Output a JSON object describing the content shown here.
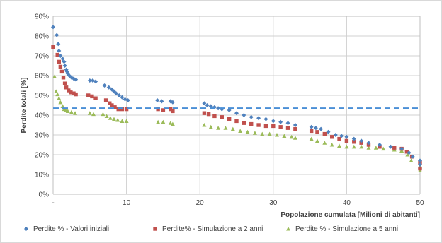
{
  "chart_data": {
    "type": "scatter",
    "title": "",
    "xlabel": "Popolazione cumulata [Milioni di abitanti]",
    "ylabel": "Perdite totali [%]",
    "xlim": [
      0,
      50
    ],
    "ylim": [
      0,
      90
    ],
    "x_ticks": [
      "-",
      "10",
      "20",
      "30",
      "40",
      "50"
    ],
    "y_ticks": [
      "0%",
      "10%",
      "20%",
      "30%",
      "40%",
      "50%",
      "60%",
      "70%",
      "80%",
      "90%"
    ],
    "grid": true,
    "legend_position": "bottom",
    "reference_line": {
      "y": 43.5,
      "color": "#4a8fd6",
      "style": "dashed"
    },
    "series": [
      {
        "name": "Perdite % - Valori iniziali",
        "color": "#4f81bd",
        "marker": "diamond",
        "points": [
          [
            0.0,
            84.5
          ],
          [
            0.5,
            80.5
          ],
          [
            0.7,
            76
          ],
          [
            0.8,
            72.5
          ],
          [
            1.0,
            70
          ],
          [
            1.3,
            68.5
          ],
          [
            1.5,
            67
          ],
          [
            1.6,
            65
          ],
          [
            1.8,
            63
          ],
          [
            1.9,
            62
          ],
          [
            2.0,
            61
          ],
          [
            2.2,
            60
          ],
          [
            2.5,
            59
          ],
          [
            2.8,
            58.5
          ],
          [
            3.1,
            58
          ],
          [
            5.0,
            57.5
          ],
          [
            5.4,
            57.5
          ],
          [
            5.8,
            57
          ],
          [
            7.0,
            55
          ],
          [
            7.6,
            54
          ],
          [
            8.0,
            53
          ],
          [
            8.3,
            52
          ],
          [
            8.6,
            51
          ],
          [
            9.0,
            50
          ],
          [
            9.4,
            49
          ],
          [
            9.8,
            48
          ],
          [
            10.2,
            47.5
          ],
          [
            14.2,
            47.5
          ],
          [
            14.8,
            47
          ],
          [
            16.0,
            47
          ],
          [
            16.3,
            46.5
          ],
          [
            20.6,
            46
          ],
          [
            21.0,
            45
          ],
          [
            21.5,
            44.5
          ],
          [
            22.0,
            44
          ],
          [
            22.5,
            43.5
          ],
          [
            23.0,
            43
          ],
          [
            24.0,
            42.5
          ],
          [
            25.0,
            41
          ],
          [
            26.0,
            40
          ],
          [
            27.0,
            39
          ],
          [
            28.0,
            38.5
          ],
          [
            29.0,
            38
          ],
          [
            30.0,
            37
          ],
          [
            31.0,
            36.5
          ],
          [
            32.0,
            36
          ],
          [
            33.0,
            35
          ],
          [
            35.2,
            34
          ],
          [
            35.8,
            33.5
          ],
          [
            36.5,
            33
          ],
          [
            37.5,
            31.5
          ],
          [
            38.5,
            30
          ],
          [
            39.3,
            29.5
          ],
          [
            40.0,
            29
          ],
          [
            41.0,
            28
          ],
          [
            42.0,
            27
          ],
          [
            43.0,
            26
          ],
          [
            44.5,
            25
          ],
          [
            46.0,
            24
          ],
          [
            47.5,
            23
          ],
          [
            48.5,
            21
          ],
          [
            49.0,
            19
          ],
          [
            50.0,
            17
          ],
          [
            50.0,
            15
          ]
        ]
      },
      {
        "name": "Perdite% - Simulazione a 2 anni",
        "color": "#c0504d",
        "marker": "square",
        "points": [
          [
            0.0,
            74.5
          ],
          [
            0.6,
            70.5
          ],
          [
            0.8,
            67
          ],
          [
            1.0,
            64.5
          ],
          [
            1.2,
            62
          ],
          [
            1.4,
            59
          ],
          [
            1.6,
            56
          ],
          [
            1.8,
            54
          ],
          [
            2.1,
            52.5
          ],
          [
            2.4,
            51.5
          ],
          [
            2.8,
            51
          ],
          [
            3.1,
            50.5
          ],
          [
            4.8,
            50
          ],
          [
            5.3,
            49.5
          ],
          [
            5.8,
            48.5
          ],
          [
            7.2,
            47.5
          ],
          [
            7.7,
            46
          ],
          [
            8.0,
            45
          ],
          [
            8.4,
            44
          ],
          [
            8.9,
            43
          ],
          [
            9.4,
            43
          ],
          [
            10.0,
            43
          ],
          [
            14.3,
            43
          ],
          [
            15.0,
            42.5
          ],
          [
            16.0,
            43
          ],
          [
            16.3,
            42
          ],
          [
            20.6,
            41
          ],
          [
            21.2,
            40.5
          ],
          [
            22.0,
            39.5
          ],
          [
            23.0,
            39
          ],
          [
            24.0,
            38
          ],
          [
            25.0,
            37
          ],
          [
            26.0,
            36
          ],
          [
            27.0,
            35.5
          ],
          [
            28.0,
            35
          ],
          [
            29.0,
            34.5
          ],
          [
            30.0,
            34.5
          ],
          [
            31.0,
            34
          ],
          [
            32.0,
            33.5
          ],
          [
            33.0,
            33
          ],
          [
            35.2,
            32
          ],
          [
            36.0,
            31.5
          ],
          [
            37.0,
            30.5
          ],
          [
            38.0,
            29
          ],
          [
            39.0,
            28
          ],
          [
            40.0,
            27
          ],
          [
            41.0,
            26.5
          ],
          [
            42.0,
            26
          ],
          [
            43.0,
            25
          ],
          [
            44.5,
            24
          ],
          [
            46.5,
            23.5
          ],
          [
            47.5,
            23
          ],
          [
            48.2,
            21.5
          ],
          [
            48.9,
            19
          ],
          [
            50.0,
            16
          ],
          [
            50.0,
            13
          ]
        ]
      },
      {
        "name": "Perdite % - Simulazione a 5 anni",
        "color": "#9bbb59",
        "marker": "triangle",
        "points": [
          [
            0.2,
            59.5
          ],
          [
            0.4,
            52
          ],
          [
            0.6,
            50.5
          ],
          [
            0.8,
            48.5
          ],
          [
            1.0,
            46.5
          ],
          [
            1.3,
            44.5
          ],
          [
            1.5,
            43
          ],
          [
            1.7,
            42.5
          ],
          [
            2.0,
            42
          ],
          [
            2.5,
            41.5
          ],
          [
            3.0,
            41
          ],
          [
            5.0,
            41
          ],
          [
            5.5,
            40.5
          ],
          [
            6.8,
            40.5
          ],
          [
            7.3,
            39.5
          ],
          [
            7.8,
            38.5
          ],
          [
            8.3,
            38
          ],
          [
            8.8,
            37.5
          ],
          [
            9.4,
            37
          ],
          [
            10.0,
            37
          ],
          [
            14.3,
            36.5
          ],
          [
            15.0,
            36.5
          ],
          [
            16.0,
            36
          ],
          [
            16.3,
            35.5
          ],
          [
            20.6,
            35
          ],
          [
            21.5,
            34
          ],
          [
            22.5,
            33.5
          ],
          [
            23.5,
            33.5
          ],
          [
            24.5,
            33
          ],
          [
            25.5,
            32
          ],
          [
            26.5,
            31.5
          ],
          [
            27.5,
            31
          ],
          [
            28.5,
            30.5
          ],
          [
            29.5,
            30.5
          ],
          [
            30.5,
            30
          ],
          [
            31.5,
            29.5
          ],
          [
            32.5,
            29
          ],
          [
            33.0,
            28.5
          ],
          [
            35.2,
            28
          ],
          [
            36.0,
            27
          ],
          [
            37.0,
            26
          ],
          [
            38.0,
            25
          ],
          [
            39.0,
            24.5
          ],
          [
            40.0,
            24
          ],
          [
            41.0,
            24
          ],
          [
            42.0,
            24
          ],
          [
            43.0,
            23.5
          ],
          [
            44.0,
            23.5
          ],
          [
            45.0,
            23
          ],
          [
            46.5,
            22.5
          ],
          [
            47.5,
            22
          ],
          [
            48.3,
            20
          ],
          [
            48.8,
            17
          ],
          [
            50.0,
            14
          ],
          [
            50.0,
            12
          ]
        ]
      }
    ]
  }
}
